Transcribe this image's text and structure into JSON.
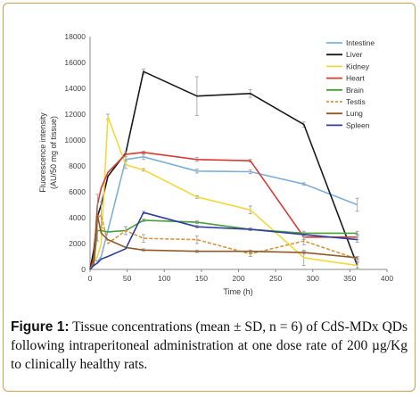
{
  "chart_data": {
    "type": "line",
    "xlabel": "Time (h)",
    "ylabel_line1": "Fluorescence intensity",
    "ylabel_line2": "(AU/50 mg of tissue)",
    "xlim": [
      0,
      400
    ],
    "ylim": [
      0,
      18000
    ],
    "x_ticks": [
      0,
      50,
      100,
      150,
      200,
      250,
      300,
      350,
      400
    ],
    "y_ticks": [
      0,
      2000,
      4000,
      6000,
      8000,
      10000,
      12000,
      14000,
      16000,
      18000
    ],
    "legend_position": "top-right",
    "series": [
      {
        "name": "Intestine",
        "color": "#7eb0d8",
        "dashed": false,
        "points": [
          [
            0,
            0
          ],
          [
            5,
            900
          ],
          [
            10,
            600
          ],
          [
            15,
            1000
          ],
          [
            24,
            3000
          ],
          [
            48,
            8500
          ],
          [
            72,
            8700
          ],
          [
            144,
            7600
          ],
          [
            216,
            7550
          ],
          [
            288,
            6600
          ],
          [
            360,
            5000
          ]
        ],
        "errors": [
          0,
          0,
          0,
          0,
          0,
          400,
          200,
          150,
          150,
          100,
          500
        ]
      },
      {
        "name": "Liver",
        "color": "#1a1a1a",
        "dashed": false,
        "points": [
          [
            0,
            0
          ],
          [
            5,
            1500
          ],
          [
            10,
            4100
          ],
          [
            15,
            5000
          ],
          [
            24,
            7200
          ],
          [
            48,
            9000
          ],
          [
            72,
            15300
          ],
          [
            144,
            13400
          ],
          [
            216,
            13600
          ],
          [
            288,
            11200
          ],
          [
            360,
            300
          ]
        ],
        "errors": [
          0,
          0,
          0,
          0,
          0,
          0,
          200,
          1500,
          300,
          200,
          300
        ]
      },
      {
        "name": "Kidney",
        "color": "#f1d93c",
        "dashed": false,
        "points": [
          [
            0,
            0
          ],
          [
            5,
            600
          ],
          [
            10,
            1000
          ],
          [
            15,
            2000
          ],
          [
            24,
            11800
          ],
          [
            48,
            8100
          ],
          [
            72,
            7700
          ],
          [
            144,
            5600
          ],
          [
            216,
            4600
          ],
          [
            288,
            900
          ],
          [
            360,
            300
          ]
        ],
        "errors": [
          0,
          0,
          0,
          0,
          200,
          300,
          100,
          100,
          300,
          600,
          200
        ]
      },
      {
        "name": "Heart",
        "color": "#d93a33",
        "dashed": false,
        "points": [
          [
            0,
            0
          ],
          [
            5,
            800
          ],
          [
            10,
            5000
          ],
          [
            15,
            6300
          ],
          [
            24,
            7500
          ],
          [
            48,
            8900
          ],
          [
            72,
            9050
          ],
          [
            144,
            8500
          ],
          [
            216,
            8400
          ],
          [
            288,
            2500
          ],
          [
            360,
            2500
          ]
        ],
        "errors": [
          0,
          0,
          0,
          0,
          0,
          200,
          100,
          150,
          100,
          200,
          200
        ]
      },
      {
        "name": "Brain",
        "color": "#4a9e3c",
        "dashed": false,
        "points": [
          [
            0,
            0
          ],
          [
            5,
            500
          ],
          [
            10,
            3000
          ],
          [
            15,
            3000
          ],
          [
            24,
            2900
          ],
          [
            48,
            3000
          ],
          [
            72,
            3800
          ],
          [
            144,
            3650
          ],
          [
            216,
            3100
          ],
          [
            288,
            2800
          ],
          [
            360,
            2800
          ]
        ],
        "errors": [
          0,
          0,
          0,
          0,
          0,
          300,
          100,
          100,
          100,
          150,
          150
        ]
      },
      {
        "name": "Testis",
        "color": "#d9963a",
        "dashed": true,
        "points": [
          [
            0,
            0
          ],
          [
            5,
            500
          ],
          [
            10,
            4000
          ],
          [
            15,
            4200
          ],
          [
            24,
            2000
          ],
          [
            48,
            3000
          ],
          [
            72,
            2400
          ],
          [
            144,
            2300
          ],
          [
            216,
            1200
          ],
          [
            288,
            2200
          ],
          [
            360,
            800
          ]
        ],
        "errors": [
          0,
          0,
          1800,
          1000,
          0,
          300,
          300,
          300,
          200,
          300,
          100
        ]
      },
      {
        "name": "Lung",
        "color": "#8f5a2a",
        "dashed": false,
        "points": [
          [
            0,
            0
          ],
          [
            5,
            400
          ],
          [
            10,
            4200
          ],
          [
            15,
            2800
          ],
          [
            24,
            2300
          ],
          [
            48,
            1700
          ],
          [
            72,
            1500
          ],
          [
            144,
            1400
          ],
          [
            216,
            1400
          ],
          [
            288,
            1300
          ],
          [
            360,
            900
          ]
        ],
        "errors": [
          0,
          0,
          0,
          0,
          0,
          0,
          100,
          100,
          100,
          100,
          100
        ]
      },
      {
        "name": "Spleen",
        "color": "#2f3f9e",
        "dashed": false,
        "points": [
          [
            0,
            0
          ],
          [
            5,
            300
          ],
          [
            10,
            500
          ],
          [
            15,
            800
          ],
          [
            24,
            1000
          ],
          [
            48,
            1600
          ],
          [
            72,
            4400
          ],
          [
            144,
            3300
          ],
          [
            216,
            3100
          ],
          [
            288,
            2700
          ],
          [
            360,
            2300
          ]
        ],
        "errors": [
          0,
          0,
          0,
          0,
          0,
          0,
          100,
          100,
          100,
          150,
          200
        ]
      }
    ]
  },
  "caption": {
    "label": "Figure 1:",
    "text": " Tissue concentrations (mean ± SD, n = 6) of CdS-MDx QDs following intraperitoneal administration at one dose rate of 200 µg/Kg to clinically healthy rats."
  }
}
